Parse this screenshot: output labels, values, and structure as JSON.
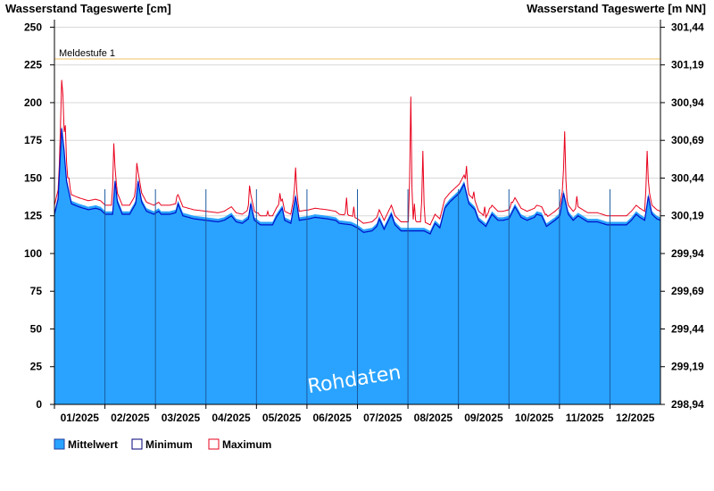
{
  "chart_data": {
    "type": "area",
    "title_left": "Wasserstand Tageswerte [cm]",
    "title_right": "Wasserstand Tageswerte [m NN]",
    "y_left_ticks": [
      "0",
      "25",
      "50",
      "75",
      "100",
      "125",
      "150",
      "175",
      "200",
      "225",
      "250"
    ],
    "y_right_ticks": [
      "298,94",
      "299,19",
      "299,44",
      "299,69",
      "299,94",
      "300,19",
      "300,44",
      "300,69",
      "300,94",
      "301,19",
      "301,44"
    ],
    "ylim": [
      0,
      255
    ],
    "x_months": [
      "01/2025",
      "02/2025",
      "03/2025",
      "04/2025",
      "05/2025",
      "06/2025",
      "07/2025",
      "08/2025",
      "09/2025",
      "10/2025",
      "11/2025",
      "12/2025"
    ],
    "threshold": {
      "label": "Meldestufe 1",
      "value": 229,
      "color": "#f0c060"
    },
    "watermark": "Rohdaten",
    "legend": [
      {
        "label": "Mittelwert",
        "color": "#29a3ff",
        "border": "#1f3fa0"
      },
      {
        "label": "Minimum",
        "color": "#ffffff",
        "border": "#00007a"
      },
      {
        "label": "Maximum",
        "color": "#ffffff",
        "border": "#e8001c"
      }
    ],
    "colors": {
      "fill": "#29a3ff",
      "min_line": "#0010c8",
      "max_line": "#e8001c",
      "grid": "#d8d8d8",
      "month_line": "#1c5aa0"
    },
    "series": {
      "mean_keypoints": [
        [
          0,
          128
        ],
        [
          3,
          138
        ],
        [
          6,
          185
        ],
        [
          8,
          170
        ],
        [
          10,
          150
        ],
        [
          14,
          135
        ],
        [
          20,
          133
        ],
        [
          28,
          131
        ],
        [
          34,
          132
        ],
        [
          38,
          131
        ],
        [
          42,
          128
        ],
        [
          48,
          128
        ],
        [
          50,
          150
        ],
        [
          52,
          136
        ],
        [
          56,
          128
        ],
        [
          62,
          128
        ],
        [
          67,
          135
        ],
        [
          69,
          150
        ],
        [
          72,
          136
        ],
        [
          76,
          130
        ],
        [
          82,
          128
        ],
        [
          86,
          130
        ],
        [
          88,
          128
        ],
        [
          95,
          128
        ],
        [
          100,
          129
        ],
        [
          102,
          135
        ],
        [
          106,
          127
        ],
        [
          115,
          125
        ],
        [
          125,
          124
        ],
        [
          135,
          123
        ],
        [
          140,
          124
        ],
        [
          146,
          127
        ],
        [
          150,
          123
        ],
        [
          155,
          122
        ],
        [
          160,
          125
        ],
        [
          162,
          135
        ],
        [
          165,
          124
        ],
        [
          170,
          121
        ],
        [
          180,
          121
        ],
        [
          183,
          126
        ],
        [
          188,
          132
        ],
        [
          190,
          124
        ],
        [
          195,
          122
        ],
        [
          199,
          140
        ],
        [
          202,
          124
        ],
        [
          210,
          125
        ],
        [
          215,
          126
        ],
        [
          225,
          125
        ],
        [
          232,
          124
        ],
        [
          235,
          122
        ],
        [
          245,
          121
        ],
        [
          250,
          119
        ],
        [
          255,
          116
        ],
        [
          262,
          117
        ],
        [
          266,
          120
        ],
        [
          268,
          125
        ],
        [
          272,
          118
        ],
        [
          278,
          128
        ],
        [
          281,
          121
        ],
        [
          286,
          117
        ],
        [
          295,
          117
        ],
        [
          305,
          117
        ],
        [
          310,
          115
        ],
        [
          314,
          122
        ],
        [
          318,
          119
        ],
        [
          322,
          132
        ],
        [
          326,
          136
        ],
        [
          334,
          142
        ],
        [
          338,
          148
        ],
        [
          342,
          135
        ],
        [
          347,
          131
        ],
        [
          350,
          124
        ],
        [
          356,
          120
        ],
        [
          361,
          128
        ],
        [
          366,
          124
        ],
        [
          370,
          124
        ],
        [
          375,
          125
        ],
        [
          380,
          133
        ],
        [
          385,
          126
        ],
        [
          390,
          124
        ],
        [
          396,
          126
        ],
        [
          398,
          128
        ],
        [
          402,
          127
        ],
        [
          406,
          120
        ],
        [
          413,
          124
        ],
        [
          417,
          127
        ],
        [
          420,
          142
        ],
        [
          424,
          128
        ],
        [
          428,
          124
        ],
        [
          432,
          127
        ],
        [
          434,
          126
        ],
        [
          440,
          123
        ],
        [
          448,
          123
        ],
        [
          456,
          121
        ],
        [
          465,
          121
        ],
        [
          472,
          121
        ],
        [
          476,
          124
        ],
        [
          480,
          128
        ],
        [
          483,
          126
        ],
        [
          487,
          124
        ],
        [
          490,
          140
        ],
        [
          493,
          128
        ],
        [
          497,
          125
        ],
        [
          500,
          124
        ]
      ],
      "spikes": [
        [
          6,
          215
        ],
        [
          7,
          205
        ],
        [
          9,
          185
        ],
        [
          12,
          150
        ],
        [
          49,
          173
        ],
        [
          68,
          160
        ],
        [
          101,
          138
        ],
        [
          129,
          125
        ],
        [
          161,
          145
        ],
        [
          168,
          127
        ],
        [
          176,
          128
        ],
        [
          186,
          140
        ],
        [
          199,
          157
        ],
        [
          241,
          137
        ],
        [
          247,
          131
        ],
        [
          257,
          117
        ],
        [
          294,
          204
        ],
        [
          297,
          133
        ],
        [
          304,
          168
        ],
        [
          340,
          158
        ],
        [
          346,
          141
        ],
        [
          355,
          131
        ],
        [
          359,
          130
        ],
        [
          377,
          134
        ],
        [
          381,
          134
        ],
        [
          406,
          126
        ],
        [
          421,
          181
        ],
        [
          431,
          138
        ],
        [
          489,
          168
        ]
      ],
      "max_offset": 4,
      "min_offset": 2,
      "days": 500
    }
  }
}
